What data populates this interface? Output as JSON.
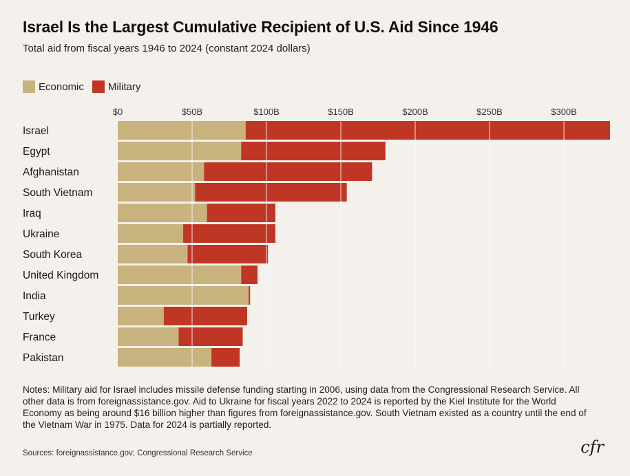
{
  "header": {
    "title": "Israel Is the Largest Cumulative Recipient of U.S. Aid Since 1946",
    "subtitle": "Total aid from fiscal years 1946 to 2024 (constant 2024 dollars)"
  },
  "colors": {
    "economic": "#c8b27d",
    "military": "#bf3624",
    "gridline": "#ffffff",
    "background": "#f4f0ec"
  },
  "chart_data": {
    "type": "bar",
    "orientation": "horizontal",
    "stacked": true,
    "categories": [
      "Israel",
      "Egypt",
      "Afghanistan",
      "South Vietnam",
      "Iraq",
      "Ukraine",
      "South Korea",
      "United Kingdom",
      "India",
      "Turkey",
      "France",
      "Pakistan"
    ],
    "series": [
      {
        "name": "Economic",
        "values": [
          86,
          83,
          58,
          52,
          60,
          44,
          47,
          83,
          88,
          31,
          41,
          63
        ]
      },
      {
        "name": "Military",
        "values": [
          245,
          97,
          113,
          102,
          46,
          62,
          54,
          11,
          1,
          56,
          43,
          19
        ]
      }
    ],
    "x_ticks": [
      "$0",
      "$50B",
      "$100B",
      "$150B",
      "$200B",
      "$250B",
      "$300B"
    ],
    "x_tick_values": [
      0,
      50,
      100,
      150,
      200,
      250,
      300
    ],
    "xlim": [
      0,
      331
    ],
    "grid": true,
    "legend_position": "top-left"
  },
  "legend": {
    "economic_label": "Economic",
    "military_label": "Military"
  },
  "footer": {
    "notes": "Notes: Military aid for Israel includes missile defense funding starting in 2006, using data from the Congressional Research Service. All other data is from foreignassistance.gov. Aid to Ukraine for fiscal years 2022 to 2024 is reported by the Kiel Institute for the World Economy as being around $16 billion higher than figures from foreignassistance.gov. South Vietnam existed as a country until the end of the Vietnam War in 1975. Data for 2024 is partially reported.",
    "sources": "Sources: foreignassistance.gov; Congressional Research Service",
    "logo": "cfr"
  }
}
